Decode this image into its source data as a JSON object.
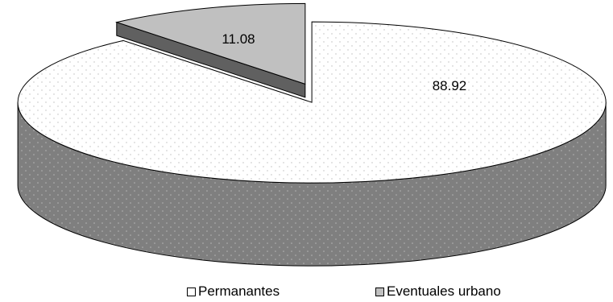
{
  "chart_data": {
    "type": "pie",
    "style": "3d-exploded",
    "slices": [
      {
        "label": "Permanantes",
        "value": 88.92,
        "color": "#ffffff",
        "side_color": "#808080",
        "pattern": "dots"
      },
      {
        "label": "Eventuales urbano",
        "value": 11.08,
        "color": "#c0c0c0",
        "side_color": "#606060",
        "pattern": "none"
      }
    ],
    "data_labels": [
      "88.92",
      "11.08"
    ],
    "legend": {
      "position": "bottom",
      "entries": [
        "Permanantes",
        "Eventuales urbano"
      ]
    }
  }
}
